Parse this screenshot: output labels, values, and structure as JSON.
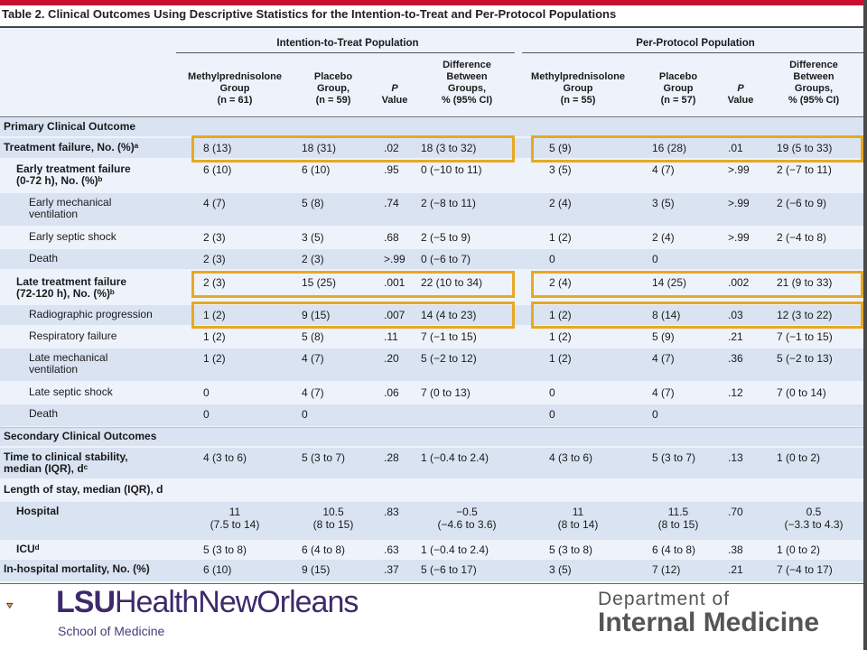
{
  "title": "Table 2. Clinical Outcomes Using Descriptive Statistics for the Intention-to-Treat and Per-Protocol Populations",
  "groups": [
    "Intention-to-Treat Population",
    "Per-Protocol Population"
  ],
  "column_headers": [
    [
      "Methylprednisolone",
      "Group",
      "(n = 61)"
    ],
    [
      "Placebo",
      "Group,",
      "(n = 59)"
    ],
    [
      "P",
      "Value"
    ],
    [
      "Difference",
      "Between",
      "Groups,",
      "% (95% CI)"
    ],
    [
      "Methylprednisolone",
      "Group",
      "(n = 55)"
    ],
    [
      "Placebo",
      "Group",
      "(n = 57)"
    ],
    [
      "P",
      "Value"
    ],
    [
      "Difference",
      "Between",
      "Groups,",
      "% (95% CI)"
    ]
  ],
  "sections": {
    "primary": "Primary Clinical Outcome",
    "secondary": "Secondary Clinical Outcomes"
  },
  "rows": [
    {
      "label": [
        "Treatment failure, No. (%)ᵃ"
      ],
      "values": [
        "8 (13)",
        "18 (31)",
        ".02",
        "18 (3 to 32)",
        "5 (9)",
        "16 (28)",
        ".01",
        "19 (5 to 33)"
      ]
    },
    {
      "label": [
        "Early treatment failure",
        "(0-72 h), No. (%)ᵇ"
      ],
      "values": [
        "6 (10)",
        "6 (10)",
        ".95",
        "0 (−10 to 11)",
        "3 (5)",
        "4 (7)",
        ">.99",
        "2 (−7 to 11)"
      ]
    },
    {
      "label": [
        "Early mechanical",
        "ventilation"
      ],
      "values": [
        "4 (7)",
        "5 (8)",
        ".74",
        "2 (−8 to 11)",
        "2 (4)",
        "3 (5)",
        ">.99",
        "2 (−6 to 9)"
      ]
    },
    {
      "label": [
        "Early septic shock"
      ],
      "values": [
        "2 (3)",
        "3 (5)",
        ".68",
        "2 (−5 to 9)",
        "1 (2)",
        "2 (4)",
        ">.99",
        "2 (−4 to 8)"
      ]
    },
    {
      "label": [
        "Death"
      ],
      "values": [
        "2 (3)",
        "2 (3)",
        ">.99",
        "0 (−6 to 7)",
        "0",
        "0",
        "",
        ""
      ]
    },
    {
      "label": [
        "Late treatment failure",
        "(72-120 h), No. (%)ᵇ"
      ],
      "values": [
        "2 (3)",
        "15 (25)",
        ".001",
        "22 (10 to 34)",
        "2 (4)",
        "14 (25)",
        ".002",
        "21 (9 to 33)"
      ]
    },
    {
      "label": [
        "Radiographic progression"
      ],
      "values": [
        "1 (2)",
        "9 (15)",
        ".007",
        "14 (4 to 23)",
        "1 (2)",
        "8 (14)",
        ".03",
        "12 (3 to 22)"
      ]
    },
    {
      "label": [
        "Respiratory failure"
      ],
      "values": [
        "1 (2)",
        "5 (8)",
        ".11",
        "7 (−1 to 15)",
        "1 (2)",
        "5 (9)",
        ".21",
        "7 (−1 to 15)"
      ]
    },
    {
      "label": [
        "Late mechanical",
        "ventilation"
      ],
      "values": [
        "1 (2)",
        "4 (7)",
        ".20",
        "5 (−2 to 12)",
        "1 (2)",
        "4 (7)",
        ".36",
        "5 (−2 to 13)"
      ]
    },
    {
      "label": [
        "Late septic shock"
      ],
      "values": [
        "0",
        "4 (7)",
        ".06",
        "7 (0 to 13)",
        "0",
        "4 (7)",
        ".12",
        "7 (0 to 14)"
      ]
    },
    {
      "label": [
        "Death"
      ],
      "values": [
        "0",
        "0",
        "",
        "",
        "0",
        "0",
        "",
        ""
      ]
    },
    {
      "label": [
        "Time to clinical stability,",
        "median (IQR), dᶜ"
      ],
      "values": [
        "4 (3 to 6)",
        "5 (3 to 7)",
        ".28",
        "1 (−0.4 to 2.4)",
        "4 (3 to 6)",
        "5 (3 to 7)",
        ".13",
        "1 (0 to 2)"
      ]
    },
    {
      "label": [
        "Length of stay, median (IQR), d"
      ],
      "values": [
        "",
        "",
        "",
        "",
        "",
        "",
        "",
        ""
      ]
    },
    {
      "label": [
        "Hospital"
      ],
      "values": [
        "11|(7.5 to 14)",
        "10.5|(8 to 15)",
        ".83",
        "−0.5|(−4.6 to 3.6)",
        "11|(8 to 14)",
        "11.5|(8 to 15)",
        ".70",
        "0.5|(−3.3 to 4.3)"
      ]
    },
    {
      "label": [
        "ICUᵈ"
      ],
      "values": [
        "5 (3 to 8)",
        "6 (4 to 8)",
        ".63",
        "1 (−0.4 to 2.4)",
        "5 (3 to 8)",
        "6 (4 to 8)",
        ".38",
        "1 (0 to 2)"
      ]
    },
    {
      "label": [
        "In-hospital mortality, No. (%)"
      ],
      "values": [
        "6 (10)",
        "9 (15)",
        ".37",
        "5 (−6 to 17)",
        "3 (5)",
        "7 (12)",
        ".21",
        "7 (−4 to 17)"
      ]
    }
  ],
  "footer": {
    "logo_main_bold": "LSU",
    "logo_main_rest": "HealthNewOrleans",
    "logo_sub": "School of Medicine",
    "dept_of": "Department of",
    "dept_name": "Internal Medicine"
  },
  "colors": {
    "highlight": "#e7a823",
    "band": "#d9e3f1",
    "lsu_purple": "#3d2a6b",
    "lsu_gold": "#f2b51d",
    "top_bar": "#c8102e"
  }
}
